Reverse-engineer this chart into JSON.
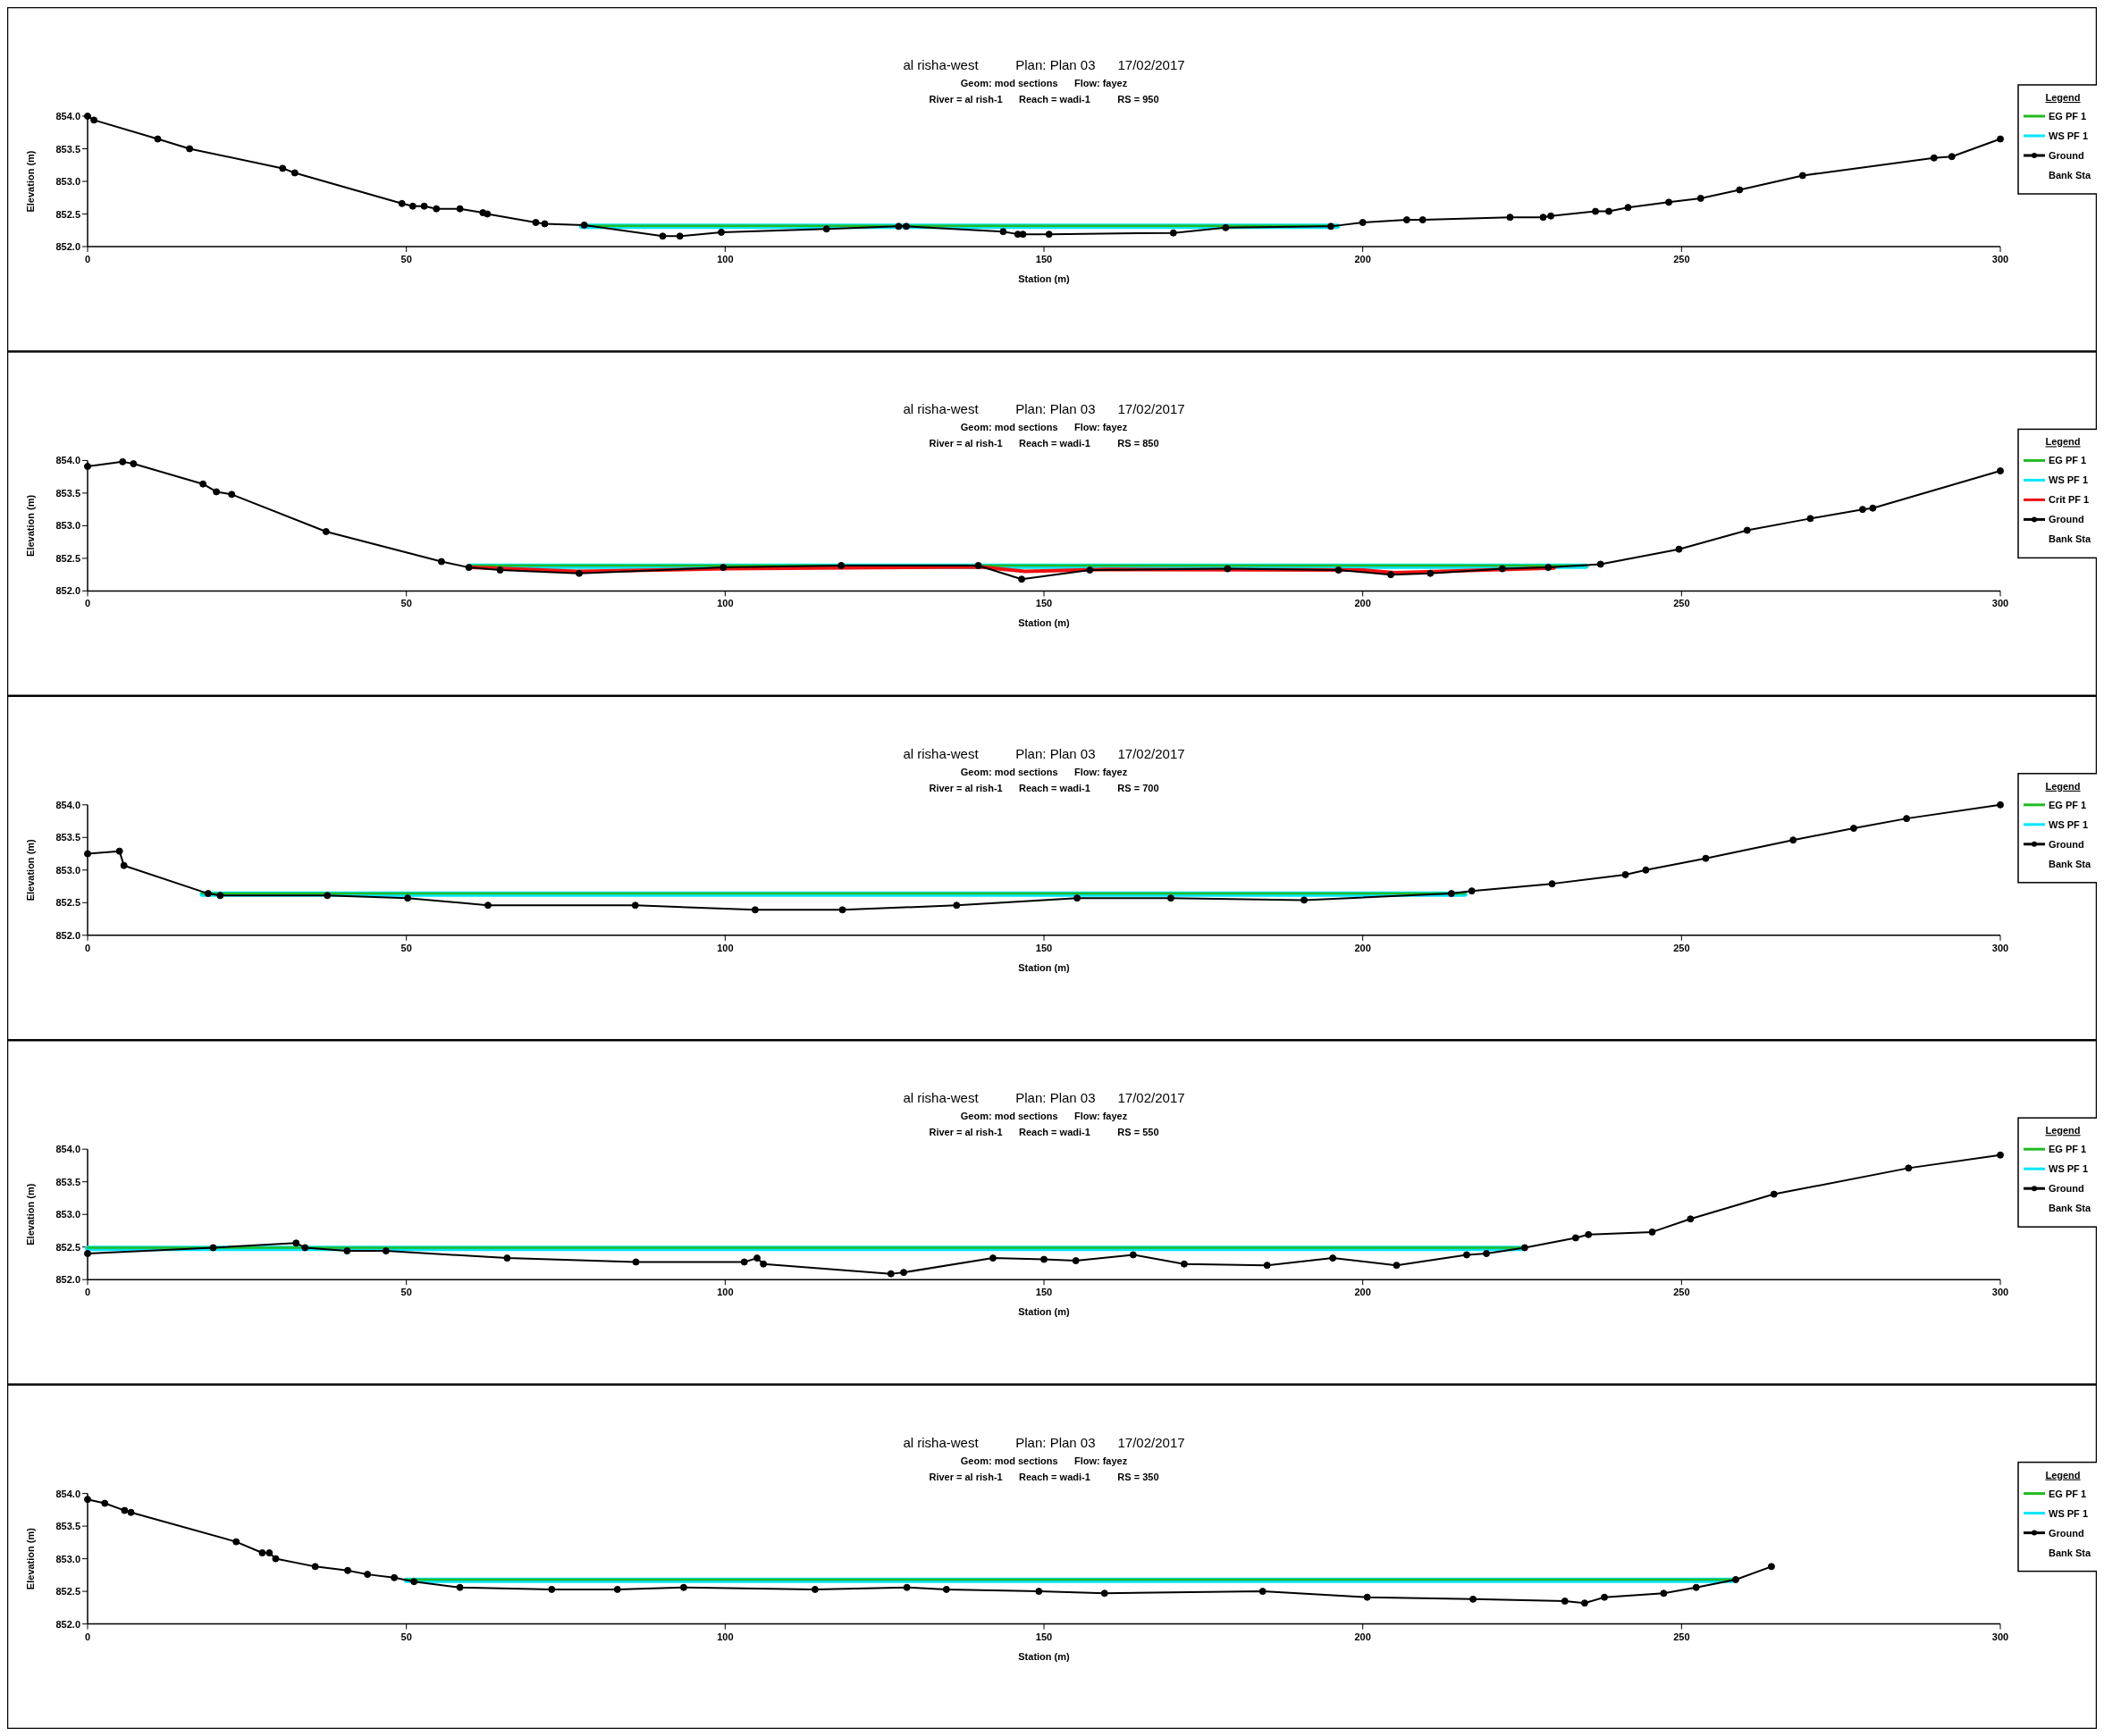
{
  "chart_data": [
    {
      "type": "line",
      "title": "al risha-west          Plan: Plan 03      17/02/2017",
      "subtitle": "Geom: mod sections      Flow: fayez",
      "annotations": [
        "River = al rish-1      Reach = wadi-1          RS = 950",
        "Bank Sta"
      ],
      "xlabel": "Station (m)",
      "ylabel": "Elevation (m)",
      "xlim": [
        0,
        300
      ],
      "xticks": [
        0,
        50,
        100,
        150,
        200,
        250,
        300
      ],
      "ylim": [
        852,
        854
      ],
      "yticks": [
        {
          "value": 852,
          "label": "852.0"
        },
        {
          "value": 852.5,
          "label": "852.5"
        },
        {
          "value": 853,
          "label": "853.0"
        },
        {
          "value": 853.5,
          "label": "853.5"
        },
        {
          "value": 854,
          "label": "854.0"
        }
      ],
      "legend": "right",
      "legend_title": "Legend",
      "series": [
        {
          "name": "EG PF 1",
          "color": "#22bb22",
          "marker": "none",
          "x": [
            77.5,
            196
          ],
          "values": [
            852.32,
            852.32
          ]
        },
        {
          "name": "WS PF 1",
          "color": "#00e5ff",
          "marker": "none",
          "x": [
            77.5,
            196
          ],
          "values": [
            852.31,
            852.31
          ]
        },
        {
          "name": "Ground",
          "color": "#000000",
          "marker": "circle",
          "x": [
            0,
            1,
            11,
            16,
            30.6,
            32.5,
            49.3,
            51,
            52.8,
            54.7,
            58.4,
            62,
            62.7,
            70.3,
            71.7,
            77.9,
            90.2,
            92.9,
            99.4,
            115.9,
            127.2,
            128.4,
            143.6,
            145.9,
            146.7,
            150.8,
            170.3,
            178.5,
            195,
            200,
            206.9,
            209.4,
            223.1,
            228.3,
            229.5,
            236.5,
            238.6,
            241.6,
            248,
            253,
            259.1,
            269,
            289.6,
            292.4,
            300
          ],
          "values": [
            854.0,
            853.94,
            853.65,
            853.5,
            853.2,
            853.13,
            852.66,
            852.62,
            852.62,
            852.58,
            852.58,
            852.52,
            852.5,
            852.37,
            852.35,
            852.33,
            852.16,
            852.16,
            852.22,
            852.27,
            852.31,
            852.31,
            852.23,
            852.19,
            852.19,
            852.19,
            852.21,
            852.29,
            852.31,
            852.37,
            852.41,
            852.41,
            852.45,
            852.45,
            852.47,
            852.54,
            852.54,
            852.6,
            852.68,
            852.74,
            852.87,
            853.09,
            853.36,
            853.38,
            853.65
          ]
        }
      ]
    },
    {
      "type": "line",
      "title": "al risha-west          Plan: Plan 03      17/02/2017",
      "subtitle": "Geom: mod sections      Flow: fayez",
      "annotations": [
        "River = al rish-1      Reach = wadi-1          RS = 850",
        "Bank Sta"
      ],
      "xlabel": "Station (m)",
      "ylabel": "Elevation (m)",
      "xlim": [
        0,
        300
      ],
      "xticks": [
        0,
        50,
        100,
        150,
        200,
        250,
        300
      ],
      "ylim": [
        852,
        854
      ],
      "yticks": [
        {
          "value": 852,
          "label": "852.0"
        },
        {
          "value": 852.5,
          "label": "852.5"
        },
        {
          "value": 853,
          "label": "853.0"
        },
        {
          "value": 853.5,
          "label": "853.5"
        },
        {
          "value": 854,
          "label": "854.0"
        }
      ],
      "legend": "right",
      "legend_title": "Legend",
      "series": [
        {
          "name": "EG PF 1",
          "color": "#22bb22",
          "marker": "none",
          "x": [
            60,
            235
          ],
          "values": [
            852.39,
            852.39
          ]
        },
        {
          "name": "WS PF 1",
          "color": "#00e5ff",
          "marker": "none",
          "x": [
            60,
            235
          ],
          "values": [
            852.38,
            852.38
          ]
        },
        {
          "name": "Crit PF 1",
          "color": "#ee1111",
          "marker": "none",
          "x": [
            60,
            77,
            100,
            140,
            147,
            160,
            200,
            205,
            230
          ],
          "values": [
            852.36,
            852.3,
            852.34,
            852.37,
            852.3,
            852.33,
            852.32,
            852.28,
            852.35
          ]
        },
        {
          "name": "Ground",
          "color": "#000000",
          "marker": "circle",
          "x": [
            0,
            5.5,
            7.2,
            18.1,
            20.2,
            22.6,
            37.4,
            55.5,
            59.8,
            64.7,
            77.1,
            99.7,
            118.2,
            139.7,
            146.5,
            157.2,
            178.8,
            196.2,
            204.4,
            210.6,
            221.9,
            229.1,
            237.3,
            249.6,
            260.3,
            270.2,
            278.4,
            280,
            300
          ],
          "values": [
            853.91,
            853.98,
            853.95,
            853.64,
            853.52,
            853.48,
            852.91,
            852.45,
            852.36,
            852.32,
            852.27,
            852.36,
            852.39,
            852.39,
            852.18,
            852.32,
            852.34,
            852.32,
            852.25,
            852.27,
            852.34,
            852.36,
            852.41,
            852.64,
            852.93,
            853.11,
            853.25,
            853.27,
            853.84
          ]
        }
      ]
    },
    {
      "type": "line",
      "title": "al risha-west          Plan: Plan 03      17/02/2017",
      "subtitle": "Geom: mod sections      Flow: fayez",
      "annotations": [
        "River = al rish-1      Reach = wadi-1          RS = 700",
        "Bank Sta"
      ],
      "xlabel": "Station (m)",
      "ylabel": "Elevation (m)",
      "xlim": [
        0,
        300
      ],
      "xticks": [
        0,
        50,
        100,
        150,
        200,
        250,
        300
      ],
      "ylim": [
        852,
        854
      ],
      "yticks": [
        {
          "value": 852,
          "label": "852.0"
        },
        {
          "value": 852.5,
          "label": "852.5"
        },
        {
          "value": 853,
          "label": "853.0"
        },
        {
          "value": 853.5,
          "label": "853.5"
        },
        {
          "value": 854,
          "label": "854.0"
        }
      ],
      "legend": "right",
      "legend_title": "Legend",
      "series": [
        {
          "name": "EG PF 1",
          "color": "#22bb22",
          "marker": "none",
          "x": [
            18,
            216
          ],
          "values": [
            852.64,
            852.64
          ]
        },
        {
          "name": "WS PF 1",
          "color": "#00e5ff",
          "marker": "none",
          "x": [
            18,
            216
          ],
          "values": [
            852.63,
            852.63
          ]
        },
        {
          "name": "Ground",
          "color": "#000000",
          "marker": "circle",
          "x": [
            0,
            5,
            5.7,
            18.9,
            20.8,
            37.6,
            50.2,
            62.8,
            85.9,
            104.7,
            118.4,
            136.3,
            155.2,
            169.9,
            190.8,
            213.9,
            217.1,
            229.7,
            241.2,
            244.4,
            253.8,
            267.5,
            277,
            285.3,
            300
          ],
          "values": [
            853.25,
            853.29,
            853.07,
            852.64,
            852.61,
            852.61,
            852.57,
            852.46,
            852.46,
            852.39,
            852.39,
            852.46,
            852.57,
            852.57,
            852.54,
            852.64,
            852.68,
            852.79,
            852.93,
            853.0,
            853.18,
            853.46,
            853.64,
            853.79,
            854.0
          ]
        }
      ]
    },
    {
      "type": "line",
      "title": "al risha-west          Plan: Plan 03      17/02/2017",
      "subtitle": "Geom: mod sections      Flow: fayez",
      "annotations": [
        "River = al rish-1      Reach = wadi-1          RS = 550",
        "Bank Sta"
      ],
      "xlabel": "Station (m)",
      "ylabel": "Elevation (m)",
      "xlim": [
        0,
        300
      ],
      "xticks": [
        0,
        50,
        100,
        150,
        200,
        250,
        300
      ],
      "ylim": [
        852,
        854
      ],
      "yticks": [
        {
          "value": 852,
          "label": "852.0"
        },
        {
          "value": 852.5,
          "label": "852.5"
        },
        {
          "value": 853,
          "label": "853.0"
        },
        {
          "value": 853.5,
          "label": "853.5"
        },
        {
          "value": 854,
          "label": "854.0"
        }
      ],
      "legend": "right",
      "legend_title": "Legend",
      "series": [
        {
          "name": "EG PF 1",
          "color": "#22bb22",
          "marker": "none",
          "x": [
            0,
            225
          ],
          "values": [
            852.49,
            852.49
          ]
        },
        {
          "name": "WS PF 1",
          "color": "#00e5ff",
          "marker": "none",
          "x": [
            0,
            225
          ],
          "values": [
            852.48,
            852.48
          ]
        },
        {
          "name": "Ground",
          "color": "#000000",
          "marker": "circle",
          "x": [
            0,
            19.7,
            32.7,
            34.1,
            40.7,
            46.8,
            65.8,
            86,
            103,
            105,
            106,
            126,
            128,
            142,
            150,
            155,
            164,
            172,
            185,
            195.3,
            205.3,
            216.3,
            219.4,
            225.4,
            233.4,
            235.4,
            245.4,
            251.4,
            264.5,
            285.6,
            300
          ],
          "values": [
            852.4,
            852.49,
            852.56,
            852.49,
            852.44,
            852.44,
            852.33,
            852.27,
            852.27,
            852.33,
            852.24,
            852.09,
            852.11,
            852.33,
            852.31,
            852.29,
            852.38,
            852.24,
            852.22,
            852.33,
            852.22,
            852.38,
            852.4,
            852.49,
            852.64,
            852.69,
            852.73,
            852.93,
            853.31,
            853.71,
            853.91
          ]
        }
      ]
    },
    {
      "type": "line",
      "title": "al risha-west          Plan: Plan 03      17/02/2017",
      "subtitle": "Geom: mod sections      Flow: fayez",
      "annotations": [
        "River = al rish-1      Reach = wadi-1          RS = 350",
        "Bank Sta"
      ],
      "xlabel": "Station (m)",
      "ylabel": "Elevation (m)",
      "xlim": [
        0,
        300
      ],
      "xticks": [
        0,
        50,
        100,
        150,
        200,
        250,
        300
      ],
      "ylim": [
        852,
        854
      ],
      "yticks": [
        {
          "value": 852,
          "label": "852.0"
        },
        {
          "value": 852.5,
          "label": "852.5"
        },
        {
          "value": 853,
          "label": "853.0"
        },
        {
          "value": 853.5,
          "label": "853.5"
        },
        {
          "value": 854,
          "label": "854.0"
        }
      ],
      "legend": "right",
      "legend_title": "Legend",
      "series": [
        {
          "name": "EG PF 1",
          "color": "#22bb22",
          "marker": "none",
          "x": [
            50,
            258
          ],
          "values": [
            852.68,
            852.68
          ]
        },
        {
          "name": "WS PF 1",
          "color": "#00e5ff",
          "marker": "none",
          "x": [
            50,
            258
          ],
          "values": [
            852.67,
            852.67
          ]
        },
        {
          "name": "Ground",
          "color": "#000000",
          "marker": "circle",
          "x": [
            0,
            2.7,
            5.8,
            6.8,
            23.3,
            27.4,
            28.5,
            29.5,
            35.7,
            40.8,
            43.9,
            48.1,
            51.2,
            58.4,
            72.8,
            83.1,
            93.5,
            114.1,
            128.5,
            134.7,
            149.2,
            159.5,
            184.3,
            200.7,
            217.3,
            231.7,
            234.8,
            237.9,
            247.2,
            252.3,
            258.5,
            264.1
          ],
          "values": [
            853.91,
            853.85,
            853.74,
            853.71,
            853.26,
            853.09,
            853.09,
            853.0,
            852.88,
            852.82,
            852.76,
            852.71,
            852.65,
            852.56,
            852.53,
            852.53,
            852.56,
            852.53,
            852.56,
            852.53,
            852.5,
            852.47,
            852.5,
            852.41,
            852.38,
            852.35,
            852.32,
            852.41,
            852.47,
            852.56,
            852.68,
            852.88
          ]
        }
      ]
    }
  ]
}
